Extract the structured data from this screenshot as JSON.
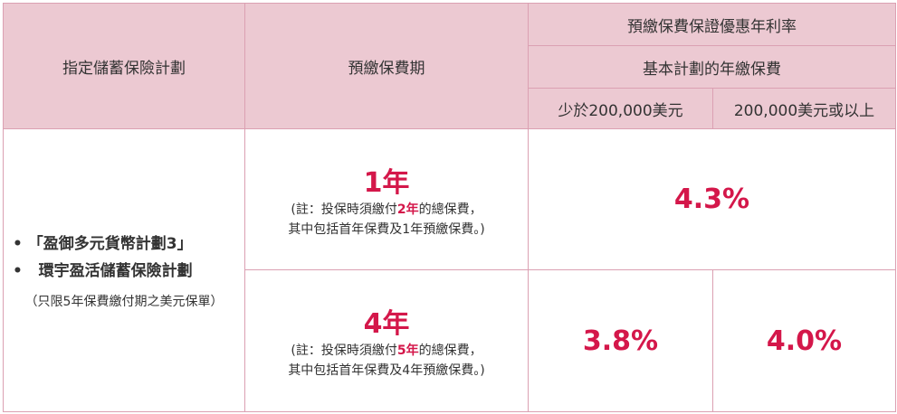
{
  "header": {
    "col_plan": "指定儲蓄保險計劃",
    "col_period": "預繳保費期",
    "col_rate": "預繳保費保證優惠年利率",
    "col_basic_premium": "基本計劃的年繳保費",
    "col_under": "少於200,000美元",
    "col_over": "200,000美元或以上"
  },
  "plans": {
    "items": [
      "「盈御多元貨幣計劃3」",
      "環宇盈活儲蓄保險計劃"
    ],
    "note": "（只限5年保費繳付期之美元保單）"
  },
  "rows": [
    {
      "period": "1年",
      "note_prefix": "(註：投保時須繳付",
      "note_highlight": "2年",
      "note_suffix": "的總保費，",
      "note_line2": "其中包括首年保費及1年預繳保費。)",
      "rate_all": "4.3%"
    },
    {
      "period": "4年",
      "note_prefix": "(註：投保時須繳付",
      "note_highlight": "5年",
      "note_suffix": "的總保費，",
      "note_line2": "其中包括首年保費及4年預繳保費。)",
      "rate_under": "3.8%",
      "rate_over": "4.0%"
    }
  ],
  "colors": {
    "header_bg": "#ecc9d2",
    "border": "#dba0b2",
    "accent": "#d4174a"
  }
}
